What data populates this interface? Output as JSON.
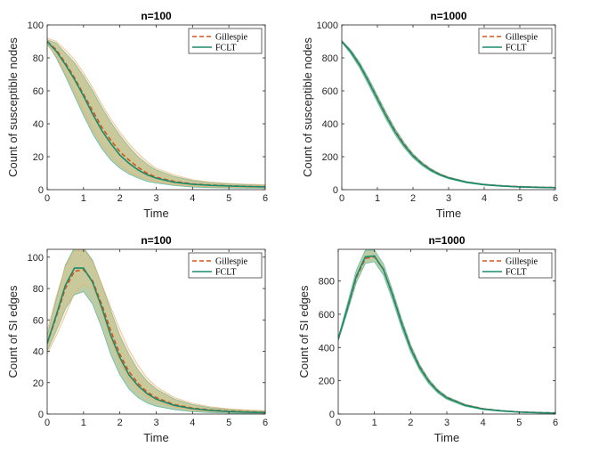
{
  "colors": {
    "gillespie": "#d95319",
    "fclt": "#1b8a6b",
    "band_fclt": "#6b8f3a",
    "band_gillespie": "#f0c080",
    "axis": "#262626"
  },
  "chart_data": [
    {
      "type": "line",
      "title": "n=100",
      "xlabel": "Time",
      "ylabel": "Count of susceptible nodes",
      "xlim": [
        0,
        6
      ],
      "ylim": [
        0,
        100
      ],
      "xticks": [
        0,
        1,
        2,
        3,
        4,
        5,
        6
      ],
      "yticks": [
        0,
        20,
        40,
        60,
        80,
        100
      ],
      "legend": {
        "position": "top-right",
        "entries": [
          "Gillespie",
          "FCLT"
        ]
      },
      "x": [
        0,
        0.25,
        0.5,
        0.75,
        1,
        1.25,
        1.5,
        1.75,
        2,
        2.25,
        2.5,
        2.75,
        3,
        3.5,
        4,
        4.5,
        5,
        5.5,
        6
      ],
      "series": [
        {
          "name": "Gillespie",
          "style": "dashed",
          "values": [
            90,
            85,
            77,
            68,
            58,
            48,
            38,
            30,
            23,
            18,
            13.5,
            10,
            7.5,
            5,
            3.5,
            2.8,
            2.3,
            2.0,
            1.8
          ]
        },
        {
          "name": "FCLT",
          "style": "solid",
          "values": [
            90,
            84,
            76,
            67,
            57,
            46,
            36,
            28,
            21,
            16,
            12,
            9,
            7,
            4.5,
            3.3,
            2.6,
            2.2,
            1.9,
            1.7
          ]
        }
      ],
      "bands": [
        {
          "name": "FCLT",
          "lower": [
            89,
            80,
            69,
            57,
            45,
            34,
            25,
            18,
            13,
            9.5,
            7,
            5,
            4,
            2.5,
            1.6,
            1.2,
            1,
            0.9,
            0.8
          ],
          "upper": [
            91,
            89,
            83,
            77,
            69,
            60,
            50,
            41,
            33,
            26,
            20,
            15.5,
            12,
            8,
            5.5,
            4.2,
            3.5,
            3,
            2.7
          ]
        },
        {
          "name": "Gillespie",
          "lower": [
            88,
            81,
            71,
            60,
            48,
            37,
            28,
            21,
            15,
            11,
            8.5,
            6.5,
            5,
            3.2,
            2.2,
            1.7,
            1.4,
            1.2,
            1
          ],
          "upper": [
            92,
            90,
            85,
            79,
            71,
            62,
            52,
            43,
            35,
            28,
            22,
            17,
            13,
            9,
            6,
            4.6,
            3.8,
            3.3,
            3
          ]
        }
      ]
    },
    {
      "type": "line",
      "title": "n=1000",
      "xlabel": "Time",
      "ylabel": "Count of susceptible nodes",
      "xlim": [
        0,
        6
      ],
      "ylim": [
        0,
        1000
      ],
      "xticks": [
        0,
        1,
        2,
        3,
        4,
        5,
        6
      ],
      "yticks": [
        0,
        200,
        400,
        600,
        800,
        1000
      ],
      "legend": {
        "position": "top-right",
        "entries": [
          "Gillespie",
          "FCLT"
        ]
      },
      "x": [
        0,
        0.25,
        0.5,
        0.75,
        1,
        1.25,
        1.5,
        1.75,
        2,
        2.25,
        2.5,
        2.75,
        3,
        3.5,
        4,
        4.5,
        5,
        5.5,
        6
      ],
      "series": [
        {
          "name": "Gillespie",
          "style": "dashed",
          "values": [
            900,
            840,
            760,
            660,
            555,
            450,
            355,
            275,
            210,
            160,
            122,
            94,
            73,
            46,
            31,
            23,
            18,
            15,
            13
          ]
        },
        {
          "name": "FCLT",
          "style": "solid",
          "values": [
            900,
            838,
            757,
            657,
            550,
            445,
            350,
            270,
            205,
            156,
            119,
            91,
            71,
            45,
            30,
            22,
            17,
            14,
            12
          ]
        }
      ],
      "bands": [
        {
          "name": "FCLT",
          "lower": [
            895,
            825,
            740,
            637,
            530,
            425,
            332,
            255,
            193,
            146,
            111,
            85,
            66,
            41,
            27,
            20,
            15,
            12,
            10
          ],
          "upper": [
            905,
            850,
            773,
            678,
            572,
            467,
            370,
            287,
            218,
            167,
            128,
            98,
            77,
            50,
            34,
            25,
            20,
            17,
            15
          ]
        }
      ]
    },
    {
      "type": "line",
      "title": "n=100",
      "xlabel": "Time",
      "ylabel": "Count of SI edges",
      "xlim": [
        0,
        6
      ],
      "ylim": [
        0,
        105
      ],
      "xticks": [
        0,
        1,
        2,
        3,
        4,
        5,
        6
      ],
      "yticks": [
        0,
        20,
        40,
        60,
        80,
        100
      ],
      "legend": {
        "position": "top-right",
        "entries": [
          "Gillespie",
          "FCLT"
        ]
      },
      "x": [
        0,
        0.25,
        0.5,
        0.75,
        1,
        1.25,
        1.5,
        1.75,
        2,
        2.25,
        2.5,
        2.75,
        3,
        3.5,
        4,
        4.5,
        5,
        5.5,
        6
      ],
      "series": [
        {
          "name": "Gillespie",
          "style": "dashed",
          "values": [
            45,
            62,
            80,
            91,
            92,
            85,
            70,
            53,
            38,
            27,
            19.5,
            14,
            10.5,
            6,
            3.8,
            2.6,
            1.9,
            1.4,
            1.1
          ]
        },
        {
          "name": "FCLT",
          "style": "solid",
          "values": [
            45,
            63,
            82,
            93,
            93,
            84,
            68,
            50,
            36,
            25,
            18,
            13,
            9.5,
            5.5,
            3.4,
            2.3,
            1.6,
            1.2,
            0.9
          ]
        }
      ],
      "bands": [
        {
          "name": "FCLT",
          "lower": [
            40,
            53,
            67,
            76,
            78,
            70,
            55,
            38,
            25,
            16,
            10.5,
            7,
            5,
            2.8,
            1.5,
            0.9,
            0.6,
            0.4,
            0.3
          ],
          "upper": [
            50,
            73,
            95,
            106,
            106,
            98,
            83,
            66,
            50,
            38,
            28,
            21,
            16,
            9.5,
            6,
            4,
            3,
            2.3,
            1.8
          ]
        },
        {
          "name": "Gillespie",
          "lower": [
            38,
            50,
            63,
            77,
            83,
            80,
            66,
            48,
            33,
            22,
            15,
            11,
            8,
            4.5,
            2.6,
            1.7,
            1.2,
            0.8,
            0.6
          ],
          "upper": [
            53,
            75,
            94,
            104,
            105,
            97,
            83,
            68,
            54,
            41,
            31,
            23,
            17.5,
            10.5,
            6.8,
            4.6,
            3.3,
            2.6,
            2.1
          ]
        }
      ]
    },
    {
      "type": "line",
      "title": "n=1000",
      "xlabel": "Time",
      "ylabel": "Count of SI edges",
      "xlim": [
        0,
        6
      ],
      "ylim": [
        0,
        990
      ],
      "xticks": [
        0,
        1,
        2,
        3,
        4,
        5,
        6
      ],
      "yticks": [
        0,
        200,
        400,
        600,
        800
      ],
      "legend": {
        "position": "top-right",
        "entries": [
          "Gillespie",
          "FCLT"
        ]
      },
      "x": [
        0,
        0.25,
        0.5,
        0.75,
        1,
        1.25,
        1.5,
        1.75,
        2,
        2.25,
        2.5,
        2.75,
        3,
        3.5,
        4,
        4.5,
        5,
        5.5,
        6
      ],
      "series": [
        {
          "name": "Gillespie",
          "style": "dashed",
          "values": [
            450,
            630,
            820,
            935,
            945,
            870,
            720,
            550,
            400,
            285,
            200,
            140,
            100,
            55,
            32,
            20,
            13,
            9,
            7
          ]
        },
        {
          "name": "FCLT",
          "style": "solid",
          "values": [
            450,
            635,
            828,
            945,
            950,
            868,
            715,
            545,
            395,
            280,
            196,
            137,
            97,
            53,
            30,
            19,
            12,
            8.5,
            6
          ]
        }
      ],
      "bands": [
        {
          "name": "FCLT",
          "lower": [
            440,
            610,
            790,
            905,
            915,
            835,
            685,
            518,
            372,
            262,
            182,
            126,
            88,
            47,
            26,
            16,
            10,
            7,
            5
          ],
          "upper": [
            460,
            660,
            865,
            985,
            985,
            902,
            745,
            572,
            418,
            298,
            210,
            148,
            106,
            59,
            34,
            22,
            14,
            10,
            7.5
          ]
        }
      ]
    }
  ]
}
